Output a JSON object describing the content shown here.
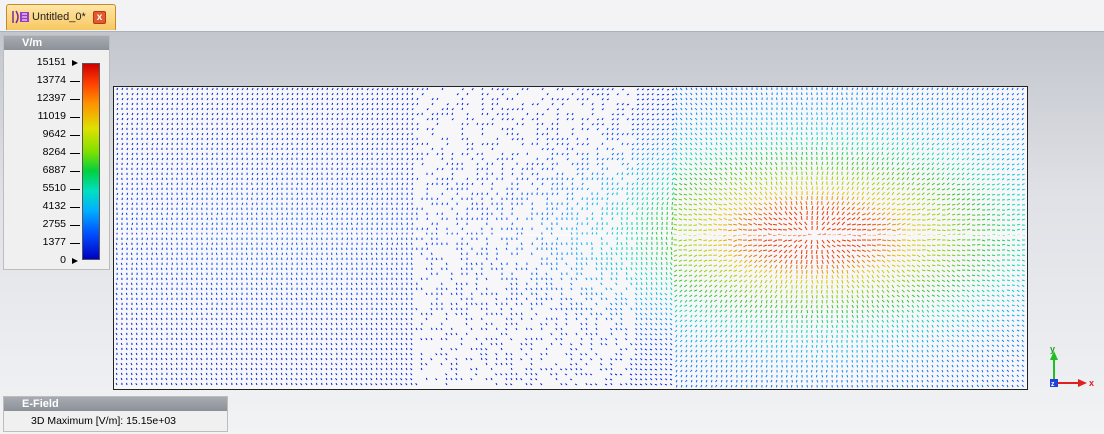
{
  "tab": {
    "label": "Untitled_0*",
    "close_glyph": "x",
    "icon": "document-design-icon"
  },
  "legend": {
    "unit": "V/m",
    "ticks": [
      "15151",
      "13774",
      "12397",
      "11019",
      "9642",
      "8264",
      "6887",
      "5510",
      "4132",
      "2755",
      "1377",
      "0"
    ]
  },
  "axes": {
    "y_label": "y",
    "z_label": "z",
    "x_label": "x"
  },
  "info": {
    "title": "E-Field",
    "line": "3D Maximum [V/m]:  15.15e+03"
  },
  "colors": {
    "tab_bg": "#f7c860",
    "axis_x": "#e02020",
    "axis_y": "#20c020",
    "axis_z": "#2040e0"
  }
}
